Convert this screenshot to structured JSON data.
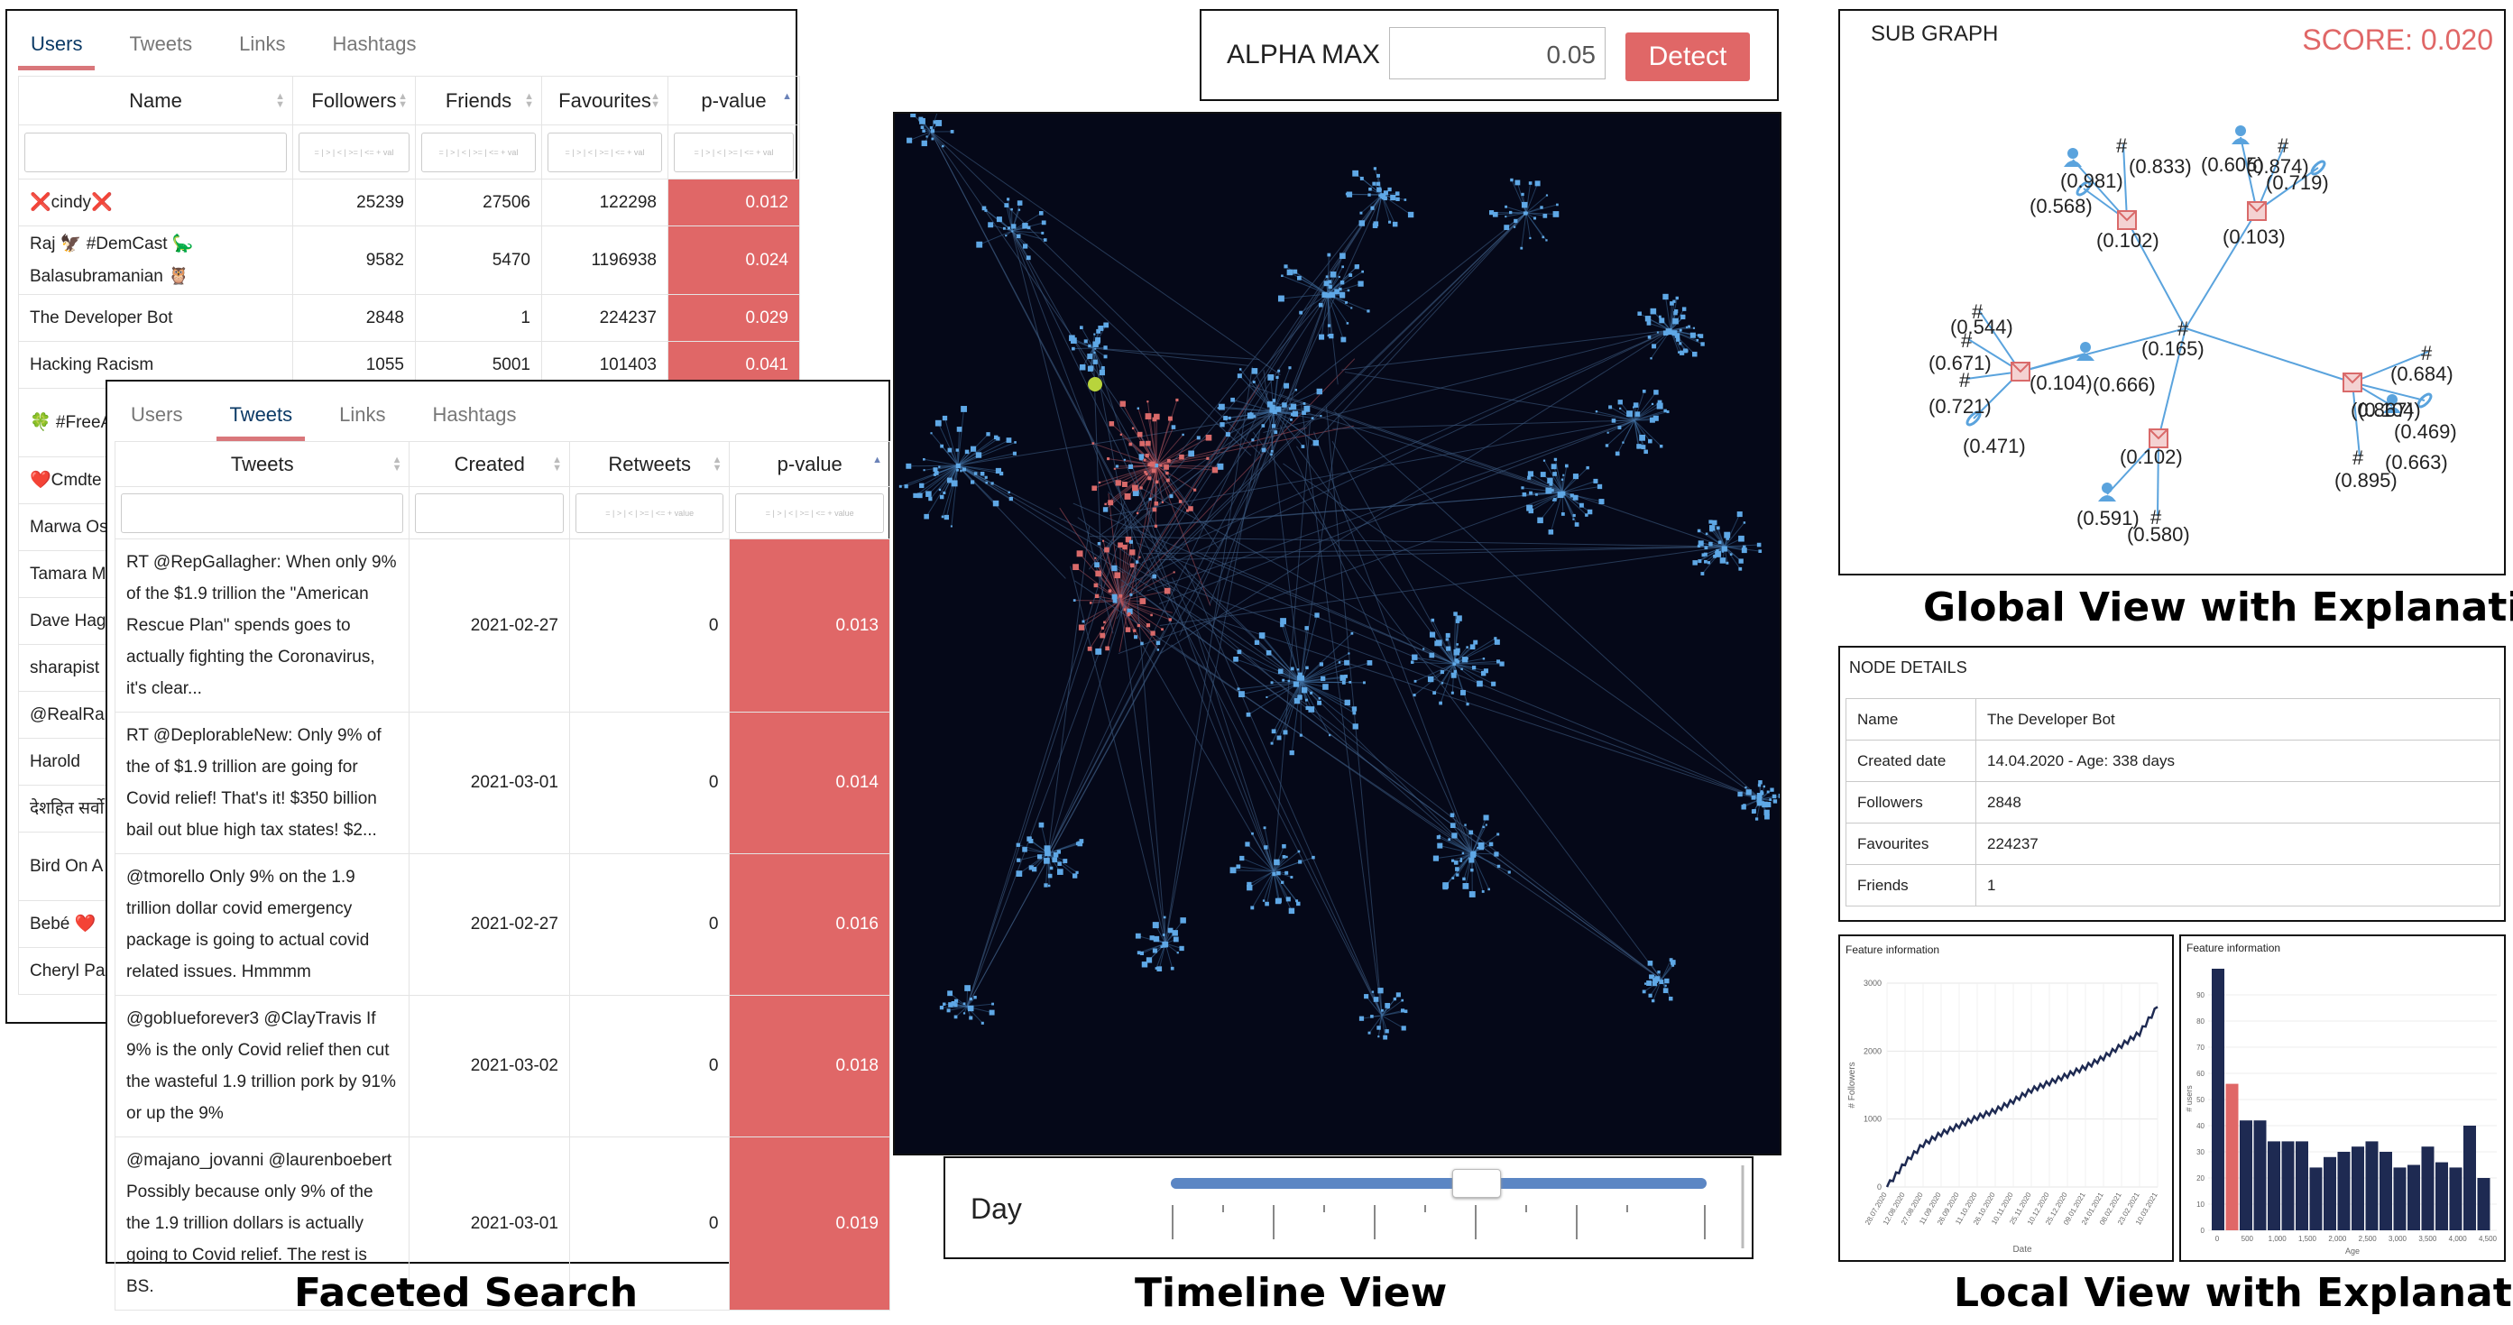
{
  "captions": {
    "faceted": "Faceted Search",
    "timeline": "Timeline View",
    "global": "Global View with Explanations",
    "local": "Local View with Explanations"
  },
  "colors": {
    "accent": "#e06767",
    "detect_button": "#e06767",
    "graph_bg": "#050818",
    "node_blue": "#5fa8e6",
    "node_red": "#d96a6a",
    "hist_bar": "#1e2a52"
  },
  "users_panel": {
    "tabs": [
      "Users",
      "Tweets",
      "Links",
      "Hashtags"
    ],
    "active_tab": "Users",
    "columns": [
      "Name",
      "Followers",
      "Friends",
      "Favourites",
      "p-value"
    ],
    "filter_placeholder": "= | > | < | >= | <= + val",
    "rows": [
      {
        "name": "❌cindy❌",
        "followers": "25239",
        "friends": "27506",
        "favourites": "122298",
        "pvalue": "0.012"
      },
      {
        "name": "Raj 🦅 #DemCast 🦕 Balasubramanian 🦉",
        "followers": "9582",
        "friends": "5470",
        "favourites": "1196938",
        "pvalue": "0.024"
      },
      {
        "name": "The Developer Bot",
        "followers": "2848",
        "friends": "1",
        "favourites": "224237",
        "pvalue": "0.029"
      },
      {
        "name": "Hacking Racism",
        "followers": "1055",
        "friends": "5001",
        "favourites": "101403",
        "pvalue": "0.041"
      },
      {
        "name": "🍀 #FreeA O'Malley",
        "followers": "",
        "friends": "",
        "favourites": "",
        "pvalue": ""
      },
      {
        "name": "❤️Cmdte",
        "followers": "",
        "friends": "",
        "favourites": "",
        "pvalue": ""
      },
      {
        "name": "Marwa Os",
        "followers": "",
        "friends": "",
        "favourites": "",
        "pvalue": ""
      },
      {
        "name": "Tamara M",
        "followers": "",
        "friends": "",
        "favourites": "",
        "pvalue": ""
      },
      {
        "name": "Dave Hage",
        "followers": "",
        "friends": "",
        "favourites": "",
        "pvalue": ""
      },
      {
        "name": "sharapist",
        "followers": "",
        "friends": "",
        "favourites": "",
        "pvalue": ""
      },
      {
        "name": "@RealRan",
        "followers": "",
        "friends": "",
        "favourites": "",
        "pvalue": ""
      },
      {
        "name": "Harold",
        "followers": "",
        "friends": "",
        "favourites": "",
        "pvalue": ""
      },
      {
        "name": "देशहित सर्वो",
        "followers": "",
        "friends": "",
        "favourites": "",
        "pvalue": ""
      },
      {
        "name": "Bird On A the smile",
        "followers": "",
        "friends": "",
        "favourites": "",
        "pvalue": ""
      },
      {
        "name": "Bebé ❤️",
        "followers": "",
        "friends": "",
        "favourites": "",
        "pvalue": ""
      },
      {
        "name": "Cheryl Par",
        "followers": "",
        "friends": "",
        "favourites": "",
        "pvalue": ""
      }
    ]
  },
  "tweets_panel": {
    "tabs": [
      "Users",
      "Tweets",
      "Links",
      "Hashtags"
    ],
    "active_tab": "Tweets",
    "columns": [
      "Tweets",
      "Created",
      "Retweets",
      "p-value"
    ],
    "filter_placeholder": "= | > | < | >= | <= + value",
    "rows": [
      {
        "text": "RT @RepGallagher: When only 9% of the $1.9 trillion the \"American Rescue Plan\" spends goes to actually fighting the Coronavirus, it's clear...",
        "created": "2021-02-27",
        "retweets": "0",
        "pvalue": "0.013"
      },
      {
        "text": "RT @DeplorableNew: Only 9% of the of $1.9 trillion are going for Covid relief!  That's it!  $350 billion bail out blue high tax states!  $2...",
        "created": "2021-03-01",
        "retweets": "0",
        "pvalue": "0.014"
      },
      {
        "text": "@tmorello Only 9% on the 1.9 trillion dollar covid emergency package is going to actual covid related issues.  Hmmmm",
        "created": "2021-02-27",
        "retweets": "0",
        "pvalue": "0.016"
      },
      {
        "text": "@gobIueforever3 @ClayTravis If 9% is the only Covid relief then cut the wasteful 1.9 trillion pork by 91% or up the 9%",
        "created": "2021-03-02",
        "retweets": "0",
        "pvalue": "0.018"
      },
      {
        "text": "@majano_jovanni @laurenboebert Possibly because only 9% of the the 1.9 trillion dollars is actually going to Covid relief. The rest is BS.",
        "created": "2021-03-01",
        "retweets": "0",
        "pvalue": "0.019"
      }
    ]
  },
  "alpha": {
    "label": "ALPHA MAX",
    "value": "0.05",
    "button": "Detect"
  },
  "timeline": {
    "label": "Day",
    "slider_fraction": 0.57
  },
  "subgraph": {
    "title": "SUB GRAPH",
    "score": "SCORE: 0.020",
    "labels": [
      "(0.981)",
      "(0.833)",
      "(0.568)",
      "(0.102)",
      "(0.605)",
      "(0.874)",
      "(0.719)",
      "(0.103)",
      "(0.544)",
      "(0.671)",
      "(0.104)",
      "(0.666)",
      "(0.165)",
      "(0.721)",
      "(0.471)",
      "(0.102)",
      "(0.591)",
      "(0.580)",
      "(0.684)",
      "(0.867)",
      "(0.104)",
      "(0.469)",
      "(0.895)",
      "(0.663)"
    ]
  },
  "node_details": {
    "title": "NODE DETAILS",
    "rows": [
      {
        "key": "Name",
        "value": "The Developer Bot"
      },
      {
        "key": "Created date",
        "value": "14.04.2020 - Age: 338 days"
      },
      {
        "key": "Followers",
        "value": "2848"
      },
      {
        "key": "Favourites",
        "value": "224237"
      },
      {
        "key": "Friends",
        "value": "1"
      }
    ]
  },
  "line_chart": {
    "title": "Feature information",
    "ylabel": "# Followers",
    "xlabel": "Date",
    "yticks": [
      "0",
      "1000",
      "2000",
      "3000"
    ],
    "xticks": [
      "28.07.2020",
      "12.08.2020",
      "27.08.2020",
      "11.09.2020",
      "26.09.2020",
      "11.10.2020",
      "26.10.2020",
      "10.11.2020",
      "25.11.2020",
      "10.12.2020",
      "25.12.2020",
      "09.01.2021",
      "24.01.2021",
      "08.02.2021",
      "23.02.2021",
      "10.03.2021"
    ]
  },
  "chart_data": [
    {
      "type": "line",
      "title": "Feature information",
      "xlabel": "Date",
      "ylabel": "# Followers",
      "ylim": [
        0,
        3000
      ],
      "x": [
        "28.07.2020",
        "12.08.2020",
        "27.08.2020",
        "11.09.2020",
        "26.09.2020",
        "11.10.2020",
        "26.10.2020",
        "10.11.2020",
        "25.11.2020",
        "10.12.2020",
        "25.12.2020",
        "09.01.2021",
        "24.01.2021",
        "08.02.2021",
        "23.02.2021",
        "10.03.2021"
      ],
      "series": [
        {
          "values": [
            0,
            350,
            620,
            780,
            900,
            1020,
            1120,
            1260,
            1420,
            1530,
            1640,
            1760,
            1900,
            2080,
            2260,
            2650
          ]
        }
      ]
    },
    {
      "type": "bar",
      "title": "Feature information",
      "xlabel": "Age",
      "ylabel": "# users",
      "ylim": [
        0,
        100
      ],
      "xticks": [
        "0",
        "500",
        "1,000",
        "1,500",
        "2,000",
        "2,500",
        "3,000",
        "3,500",
        "4,000",
        "4,500"
      ],
      "yticks": [
        "0",
        "10",
        "20",
        "30",
        "40",
        "50",
        "60",
        "70",
        "80",
        "90"
      ],
      "values": [
        100,
        56,
        42,
        42,
        34,
        34,
        34,
        24,
        28,
        30,
        32,
        34,
        30,
        24,
        25,
        32,
        26,
        24,
        40,
        20
      ],
      "highlight_index": 1
    }
  ]
}
